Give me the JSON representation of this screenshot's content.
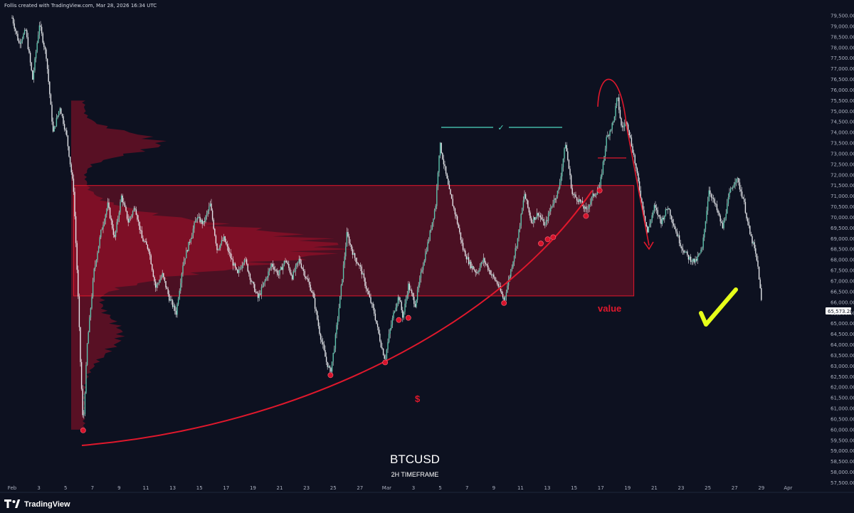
{
  "header": {
    "text": "Follis created with TradingView.com, Mar 28, 2026 16:34 UTC"
  },
  "footer": {
    "brand": "TradingView",
    "logo_icon": "tradingview-logo-icon"
  },
  "chart_data": {
    "type": "candlestick",
    "title": "BTCUSD",
    "subtitle": "2H TIMEFRAME",
    "y_ticks": [
      "79,500.00",
      "79,000.00",
      "78,500.00",
      "78,000.00",
      "77,500.00",
      "77,000.00",
      "76,500.00",
      "76,000.00",
      "75,500.00",
      "75,000.00",
      "74,500.00",
      "74,000.00",
      "73,500.00",
      "73,000.00",
      "72,500.00",
      "72,000.00",
      "71,500.00",
      "71,000.00",
      "70,500.00",
      "70,000.00",
      "69,500.00",
      "69,000.00",
      "68,500.00",
      "68,000.00",
      "67,500.00",
      "67,000.00",
      "66,500.00",
      "66,000.00",
      "65,500.00",
      "65,000.00",
      "64,500.00",
      "64,000.00",
      "63,500.00",
      "63,000.00",
      "62,500.00",
      "62,000.00",
      "61,500.00",
      "61,000.00",
      "60,500.00",
      "60,000.00",
      "59,500.00",
      "59,000.00",
      "58,500.00",
      "58,000.00",
      "57,500.00"
    ],
    "x_ticks": [
      "Feb",
      "3",
      "5",
      "7",
      "9",
      "11",
      "13",
      "15",
      "17",
      "19",
      "21",
      "23",
      "25",
      "27",
      "Mar",
      "3",
      "5",
      "7",
      "9",
      "11",
      "13",
      "15",
      "17",
      "19",
      "21",
      "23",
      "25",
      "27",
      "29",
      "Apr"
    ],
    "ylim": [
      57500,
      79500
    ],
    "last_price": {
      "value": 65573.28,
      "label": "65,573.28"
    },
    "price_path": [
      [
        "Feb 1",
        79400
      ],
      [
        "Feb 1.5",
        78200
      ],
      [
        "Feb 2",
        78800
      ],
      [
        "Feb 2.5",
        76500
      ],
      [
        "Feb 3",
        79100
      ],
      [
        "Feb 3.5",
        77600
      ],
      [
        "Feb 4",
        74000
      ],
      [
        "Feb 4.5",
        75200
      ],
      [
        "Feb 5",
        73800
      ],
      [
        "Feb 5.5",
        71300
      ],
      [
        "Feb 5.8",
        66800
      ],
      [
        "Feb 6",
        63200
      ],
      [
        "Feb 6.2",
        60100
      ],
      [
        "Feb 6.5",
        64000
      ],
      [
        "Feb 7",
        67500
      ],
      [
        "Feb 7.5",
        69300
      ],
      [
        "Feb 8",
        70600
      ],
      [
        "Feb 8.5",
        69000
      ],
      [
        "Feb 9",
        71000
      ],
      [
        "Feb 9.5",
        69800
      ],
      [
        "Feb 10",
        70500
      ],
      [
        "Feb 10.5",
        69000
      ],
      [
        "Feb 11",
        68500
      ],
      [
        "Feb 11.5",
        66700
      ],
      [
        "Feb 12",
        67300
      ],
      [
        "Feb 12.5",
        66200
      ],
      [
        "Feb 13",
        65500
      ],
      [
        "Feb 13.5",
        67800
      ],
      [
        "Feb 14",
        68900
      ],
      [
        "Feb 14.5",
        70000
      ],
      [
        "Feb 15",
        69700
      ],
      [
        "Feb 15.5",
        70600
      ],
      [
        "Feb 16",
        68500
      ],
      [
        "Feb 16.5",
        69000
      ],
      [
        "Feb 17",
        68100
      ],
      [
        "Feb 17.5",
        67300
      ],
      [
        "Feb 18",
        68100
      ],
      [
        "Feb 18.5",
        67000
      ],
      [
        "Feb 19",
        66200
      ],
      [
        "Feb 19.5",
        67000
      ],
      [
        "Feb 20",
        67800
      ],
      [
        "Feb 20.5",
        67300
      ],
      [
        "Feb 21",
        68000
      ],
      [
        "Feb 21.5",
        67200
      ],
      [
        "Feb 22",
        68000
      ],
      [
        "Feb 22.5",
        67200
      ],
      [
        "Feb 23",
        66400
      ],
      [
        "Feb 23.5",
        64600
      ],
      [
        "Feb 24",
        63200
      ],
      [
        "Feb 24.3",
        62700
      ],
      [
        "Feb 24.6",
        64000
      ],
      [
        "Feb 25",
        66200
      ],
      [
        "Feb 25.5",
        69200
      ],
      [
        "Feb 26",
        68200
      ],
      [
        "Feb 26.5",
        67600
      ],
      [
        "Feb 27",
        66500
      ],
      [
        "Feb 27.5",
        65500
      ],
      [
        "Feb 27.8",
        64600
      ],
      [
        "Feb 28",
        64000
      ],
      [
        "Feb 28.3",
        63300
      ],
      [
        "Feb 28.6",
        64500
      ],
      [
        "Mar 1",
        65700
      ],
      [
        "Mar 1.3",
        66300
      ],
      [
        "Mar 1.6",
        65300
      ],
      [
        "Mar 2",
        66800
      ],
      [
        "Mar 2.5",
        65900
      ],
      [
        "Mar 3",
        67600
      ],
      [
        "Mar 3.5",
        69000
      ],
      [
        "Mar 4",
        70600
      ],
      [
        "Mar 4.3",
        73500
      ],
      [
        "Mar 4.6",
        72500
      ],
      [
        "Mar 5",
        71200
      ],
      [
        "Mar 5.5",
        70000
      ],
      [
        "Mar 6",
        68500
      ],
      [
        "Mar 6.5",
        67800
      ],
      [
        "Mar 7",
        67400
      ],
      [
        "Mar 7.5",
        68000
      ],
      [
        "Mar 8",
        67400
      ],
      [
        "Mar 8.5",
        66900
      ],
      [
        "Mar 9",
        66100
      ],
      [
        "Mar 9.5",
        67500
      ],
      [
        "Mar 10",
        69000
      ],
      [
        "Mar 10.5",
        71100
      ],
      [
        "Mar 11",
        69800
      ],
      [
        "Mar 11.5",
        70200
      ],
      [
        "Mar 12",
        69600
      ],
      [
        "Mar 12.5",
        70600
      ],
      [
        "Mar 13",
        71300
      ],
      [
        "Mar 13.5",
        73500
      ],
      [
        "Mar 14",
        71100
      ],
      [
        "Mar 14.5",
        70800
      ],
      [
        "Mar 15",
        70300
      ],
      [
        "Mar 15.5",
        71000
      ],
      [
        "Mar 16",
        71400
      ],
      [
        "Mar 16.5",
        73700
      ],
      [
        "Mar 17",
        74500
      ],
      [
        "Mar 17.3",
        75700
      ],
      [
        "Mar 17.6",
        74200
      ],
      [
        "Mar 18",
        74500
      ],
      [
        "Mar 18.5",
        72900
      ],
      [
        "Mar 19",
        71000
      ],
      [
        "Mar 19.5",
        69300
      ],
      [
        "Mar 20",
        70500
      ],
      [
        "Mar 20.5",
        69800
      ],
      [
        "Mar 21",
        70500
      ],
      [
        "Mar 21.5",
        69500
      ],
      [
        "Mar 22",
        68600
      ],
      [
        "Mar 22.5",
        68100
      ],
      [
        "Mar 23",
        67900
      ],
      [
        "Mar 23.5",
        68500
      ],
      [
        "Mar 24",
        71300
      ],
      [
        "Mar 24.5",
        70500
      ],
      [
        "Mar 25",
        69500
      ],
      [
        "Mar 25.5",
        71100
      ],
      [
        "Mar 26",
        71900
      ],
      [
        "Mar 26.5",
        70900
      ],
      [
        "Mar 27",
        69200
      ],
      [
        "Mar 27.3",
        68600
      ],
      [
        "Mar 27.6",
        67600
      ],
      [
        "Mar 27.9",
        65600
      ]
    ],
    "annotations": {
      "value_area": {
        "label": "value",
        "y_top": 71500,
        "y_bottom": 66300,
        "x_start": "Feb 5.5",
        "x_end": "Mar 18.5",
        "color": "#d0102a"
      },
      "liquidity_label": "$",
      "top_line_check": "✓",
      "bullish_check_color": "#e6ff1a",
      "swing_low_dots": [
        [
          "Feb 6.2",
          60100
        ],
        [
          "Feb 24.3",
          62700
        ],
        [
          "Feb 28.3",
          63300
        ],
        [
          "Mar 1.3",
          65300
        ],
        [
          "Mar 2",
          65400
        ],
        [
          "Mar 9",
          66100
        ],
        [
          "Mar 11.7",
          68900
        ],
        [
          "Mar 12.2",
          69100
        ],
        [
          "Mar 12.6",
          69200
        ],
        [
          "Mar 15",
          70200
        ],
        [
          "Mar 16",
          71400
        ]
      ]
    },
    "colors": {
      "candle": "#5ec3ad",
      "wick": "#e4e6ea",
      "annotation": "#e0182c",
      "background": "#0d1120"
    }
  }
}
